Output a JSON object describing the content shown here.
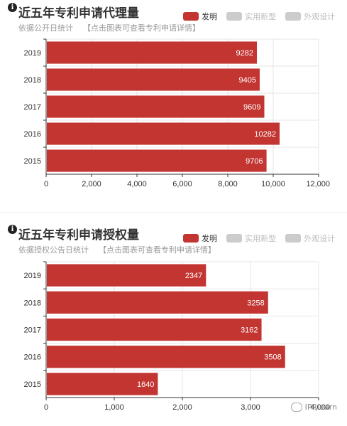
{
  "colors": {
    "bar": "#c23531",
    "legend_inactive": "#cccccc",
    "grid": "#e6e6e6",
    "axis": "#333333"
  },
  "legend": [
    {
      "label": "发明",
      "active": true
    },
    {
      "label": "实用新型",
      "active": false
    },
    {
      "label": "外观设计",
      "active": false
    }
  ],
  "panels": [
    {
      "title": "近五年专利申请代理量",
      "subtitle": "依据公开日统计",
      "link": "【点击图表可查看专利申请详情】"
    },
    {
      "title": "近五年专利申请授权量",
      "subtitle": "依据授权公告日统计",
      "link": "【点击图表可查看专利申请详情】"
    }
  ],
  "chart_data": [
    {
      "type": "bar",
      "orientation": "horizontal",
      "title": "近五年专利申请代理量",
      "categories": [
        "2019",
        "2018",
        "2017",
        "2016",
        "2015"
      ],
      "values": [
        9282,
        9405,
        9609,
        10282,
        9706
      ],
      "xlim": [
        0,
        12000
      ],
      "xticks": [
        "0",
        "2,000",
        "4,000",
        "6,000",
        "8,000",
        "10,000",
        "12,000"
      ],
      "xtick_values": [
        0,
        2000,
        4000,
        6000,
        8000,
        10000,
        12000
      ],
      "legend": "top-right",
      "grid": true
    },
    {
      "type": "bar",
      "orientation": "horizontal",
      "title": "近五年专利申请授权量",
      "categories": [
        "2019",
        "2018",
        "2017",
        "2016",
        "2015"
      ],
      "values": [
        2347,
        3258,
        3162,
        3508,
        1640
      ],
      "xlim": [
        0,
        4000
      ],
      "xticks": [
        "0",
        "1,000",
        "2,000",
        "3,000",
        "4,000"
      ],
      "xtick_values": [
        0,
        1000,
        2000,
        3000,
        4000
      ],
      "legend": "top-right",
      "grid": true
    }
  ],
  "watermark": "IPRlearn"
}
